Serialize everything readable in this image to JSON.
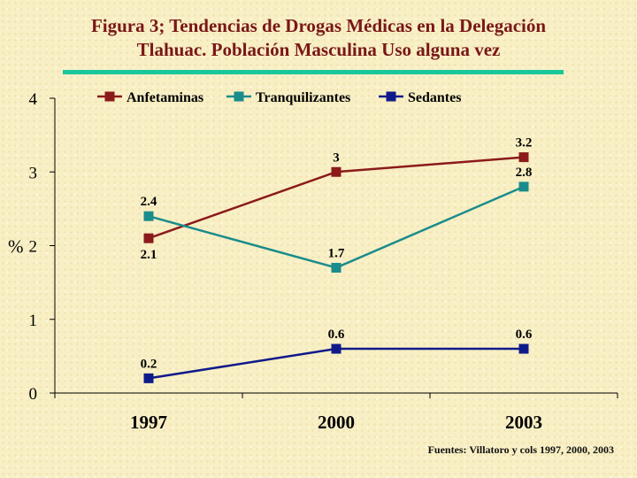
{
  "title": {
    "line1": "Figura 3; Tendencias de Drogas Médicas en  la Delegación",
    "line2": "Tlahuac. Población Masculina Uso alguna vez"
  },
  "source": "Fuentes: Villatoro y cols 1997, 2000, 2003",
  "colors": {
    "title": "#7a1717",
    "rule": "#19c79a",
    "background": "#f8efc4"
  },
  "chart_data": {
    "type": "line",
    "categories": [
      "1997",
      "2000",
      "2003"
    ],
    "ylabel": "%",
    "ylim": [
      0,
      4
    ],
    "yticks": [
      "0",
      "1",
      "2",
      "3",
      "4"
    ],
    "grid": false,
    "legend_position": "top",
    "series": [
      {
        "name": "Anfetaminas",
        "values": [
          2.1,
          3,
          3.2
        ],
        "labels": [
          "2.1",
          "3",
          "3.2"
        ],
        "color": "#8b1a1a",
        "label_side": [
          "below",
          "above",
          "above"
        ]
      },
      {
        "name": "Tranquilizantes",
        "values": [
          2.4,
          1.7,
          2.8
        ],
        "labels": [
          "2.4",
          "1.7",
          "2.8"
        ],
        "color": "#1a8c8c",
        "label_side": [
          "above",
          "above",
          "above"
        ]
      },
      {
        "name": "Sedantes",
        "values": [
          0.2,
          0.6,
          0.6
        ],
        "labels": [
          "0.2",
          "0.6",
          "0.6"
        ],
        "color": "#0f1a8a",
        "label_side": [
          "above",
          "above",
          "above"
        ]
      }
    ]
  }
}
